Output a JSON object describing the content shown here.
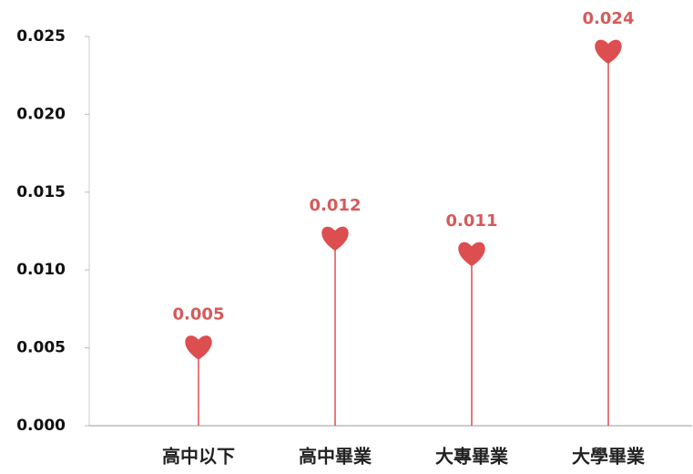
{
  "chart_data": {
    "type": "lollipop",
    "categories": [
      "高中以下",
      "高中畢業",
      "大專畢業",
      "大學畢業"
    ],
    "values": [
      0.005,
      0.012,
      0.011,
      0.024
    ],
    "color": "#dc4e50",
    "ylim": [
      0,
      0.025
    ],
    "yticks": [
      {
        "value": 0,
        "label": "0.000"
      },
      {
        "value": 0.005,
        "label": "0.005"
      },
      {
        "value": 0.01,
        "label": "0.010"
      },
      {
        "value": 0.015,
        "label": "0.015"
      },
      {
        "value": 0.02,
        "label": "0.020"
      },
      {
        "value": 0.025,
        "label": "0.025"
      }
    ]
  }
}
